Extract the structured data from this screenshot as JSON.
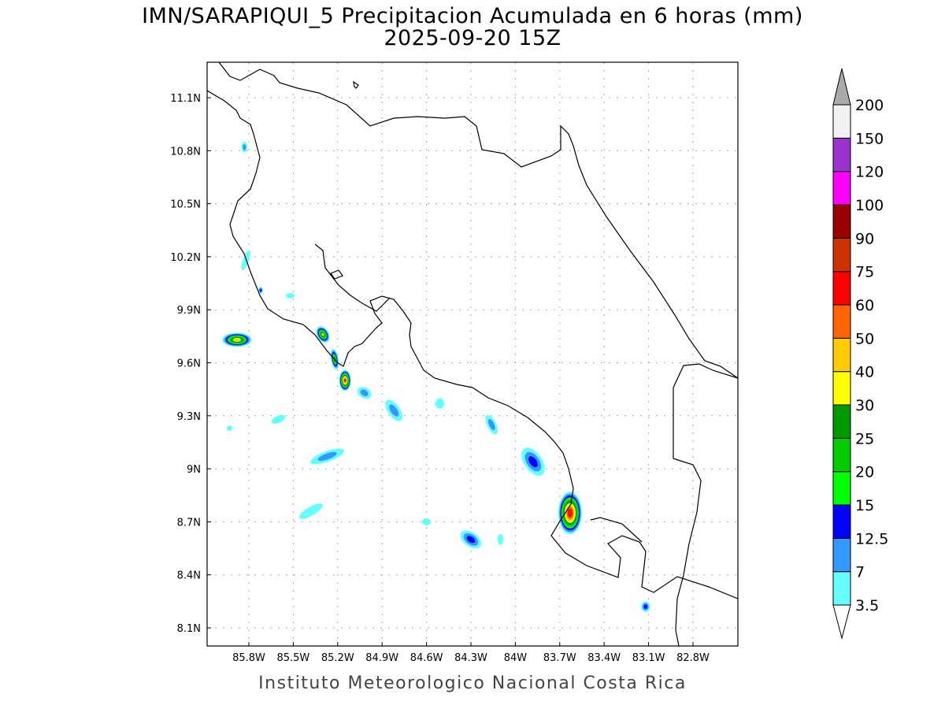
{
  "title": "IMN/SARAPIQUI_5 Precipitacion Acumulada en 6 horas (mm)",
  "subtitle": "2025-09-20 15Z",
  "footer": "Instituto Meteorologico Nacional Costa Rica",
  "map": {
    "lon_range": [
      -86.08,
      -82.5
    ],
    "lat_range": [
      8.0,
      11.3
    ],
    "lat_ticks": [
      {
        "v": 11.1,
        "label": "11.1N"
      },
      {
        "v": 10.8,
        "label": "10.8N"
      },
      {
        "v": 10.5,
        "label": "10.5N"
      },
      {
        "v": 10.2,
        "label": "10.2N"
      },
      {
        "v": 9.9,
        "label": "9.9N"
      },
      {
        "v": 9.6,
        "label": "9.6N"
      },
      {
        "v": 9.3,
        "label": "9.3N"
      },
      {
        "v": 9.0,
        "label": "9N"
      },
      {
        "v": 8.7,
        "label": "8.7N"
      },
      {
        "v": 8.4,
        "label": "8.4N"
      },
      {
        "v": 8.1,
        "label": "8.1N"
      }
    ],
    "lon_ticks": [
      {
        "v": -85.8,
        "label": "85.8W"
      },
      {
        "v": -85.5,
        "label": "85.5W"
      },
      {
        "v": -85.2,
        "label": "85.2W"
      },
      {
        "v": -84.9,
        "label": "84.9W"
      },
      {
        "v": -84.6,
        "label": "84.6W"
      },
      {
        "v": -84.3,
        "label": "84.3W"
      },
      {
        "v": -84.0,
        "label": "84W"
      },
      {
        "v": -83.7,
        "label": "83.7W"
      },
      {
        "v": -83.4,
        "label": "83.4W"
      },
      {
        "v": -83.1,
        "label": "83.1W"
      },
      {
        "v": -82.8,
        "label": "82.8W"
      }
    ]
  },
  "colorbar": {
    "labels": [
      "3.5",
      "7",
      "12.5",
      "15",
      "20",
      "25",
      "30",
      "40",
      "50",
      "60",
      "75",
      "90",
      "100",
      "120",
      "150",
      "200"
    ],
    "colors": [
      "#66ffff",
      "#3399ff",
      "#0000ff",
      "#00ff00",
      "#00cc00",
      "#009900",
      "#ffff00",
      "#ffcc00",
      "#ff6600",
      "#ff0000",
      "#cc3300",
      "#990000",
      "#ff00ff",
      "#9933cc",
      "#f2f2f2"
    ],
    "over_color": "#aaaaaa",
    "under_color": "#ffffff"
  },
  "precip_cells": [
    {
      "lon": -85.88,
      "lat": 9.73,
      "rx": 0.1,
      "ry": 0.04,
      "max": 40,
      "rot": 0
    },
    {
      "lon": -85.83,
      "lat": 10.82,
      "rx": 0.02,
      "ry": 0.03,
      "max": 7,
      "rot": 0
    },
    {
      "lon": -85.72,
      "lat": 10.01,
      "rx": 0.015,
      "ry": 0.02,
      "max": 12.5,
      "rot": 0
    },
    {
      "lon": -85.3,
      "lat": 9.76,
      "rx": 0.04,
      "ry": 0.05,
      "max": 30,
      "rot": -30
    },
    {
      "lon": -85.22,
      "lat": 9.62,
      "rx": 0.025,
      "ry": 0.06,
      "max": 25,
      "rot": -10
    },
    {
      "lon": -85.15,
      "lat": 9.5,
      "rx": 0.04,
      "ry": 0.06,
      "max": 60,
      "rot": 0
    },
    {
      "lon": -85.02,
      "lat": 9.43,
      "rx": 0.05,
      "ry": 0.03,
      "max": 7,
      "rot": 30
    },
    {
      "lon": -84.82,
      "lat": 9.33,
      "rx": 0.04,
      "ry": 0.07,
      "max": 7,
      "rot": -35
    },
    {
      "lon": -84.51,
      "lat": 9.37,
      "rx": 0.03,
      "ry": 0.03,
      "max": 3.5,
      "rot": 0
    },
    {
      "lon": -84.16,
      "lat": 9.25,
      "rx": 0.03,
      "ry": 0.06,
      "max": 7,
      "rot": -25
    },
    {
      "lon": -85.27,
      "lat": 9.07,
      "rx": 0.12,
      "ry": 0.03,
      "max": 7,
      "rot": -20
    },
    {
      "lon": -83.88,
      "lat": 9.04,
      "rx": 0.06,
      "ry": 0.09,
      "max": 12.5,
      "rot": -35
    },
    {
      "lon": -83.63,
      "lat": 8.75,
      "rx": 0.08,
      "ry": 0.12,
      "max": 75,
      "rot": 0
    },
    {
      "lon": -84.3,
      "lat": 8.6,
      "rx": 0.08,
      "ry": 0.04,
      "max": 12.5,
      "rot": 35
    },
    {
      "lon": -83.12,
      "lat": 8.22,
      "rx": 0.03,
      "ry": 0.03,
      "max": 12.5,
      "rot": 0
    },
    {
      "lon": -85.38,
      "lat": 8.76,
      "rx": 0.09,
      "ry": 0.025,
      "max": 3.5,
      "rot": -30
    },
    {
      "lon": -85.52,
      "lat": 9.98,
      "rx": 0.03,
      "ry": 0.015,
      "max": 3.5,
      "rot": 0
    },
    {
      "lon": -85.6,
      "lat": 9.28,
      "rx": 0.05,
      "ry": 0.02,
      "max": 3.5,
      "rot": -25
    },
    {
      "lon": -84.6,
      "lat": 8.7,
      "rx": 0.03,
      "ry": 0.02,
      "max": 3.5,
      "rot": 0
    },
    {
      "lon": -84.1,
      "lat": 8.6,
      "rx": 0.02,
      "ry": 0.03,
      "max": 3.5,
      "rot": 0
    },
    {
      "lon": -85.82,
      "lat": 10.18,
      "rx": 0.02,
      "ry": 0.06,
      "max": 3.5,
      "rot": 20
    },
    {
      "lon": -85.93,
      "lat": 9.23,
      "rx": 0.02,
      "ry": 0.015,
      "max": 3.5,
      "rot": 0
    }
  ]
}
